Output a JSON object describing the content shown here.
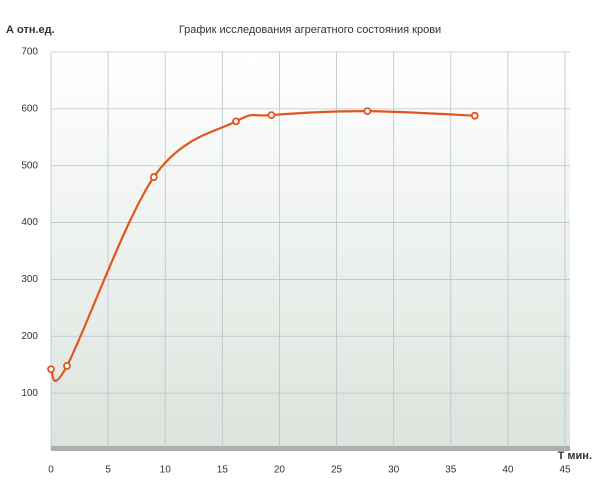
{
  "chart_data": {
    "type": "line",
    "title": "График исследования  агрегатного состояния крови",
    "y_label": "А отн.ед.",
    "x_label": "Т мин.",
    "series": [
      {
        "color": "#e0561e",
        "x": [
          0,
          1.4,
          9.0,
          16.2,
          19.3,
          27.7,
          37.1
        ],
        "values": [
          142,
          148,
          480,
          578,
          589,
          596,
          588
        ]
      }
    ],
    "xlim": [
      0,
      45
    ],
    "xticks": [
      0,
      5,
      10,
      15,
      20,
      25,
      30,
      35,
      40,
      45
    ],
    "ylim": [
      0,
      700
    ],
    "yticks": [
      100,
      200,
      300,
      400,
      500,
      600,
      700
    ],
    "grid": true
  }
}
